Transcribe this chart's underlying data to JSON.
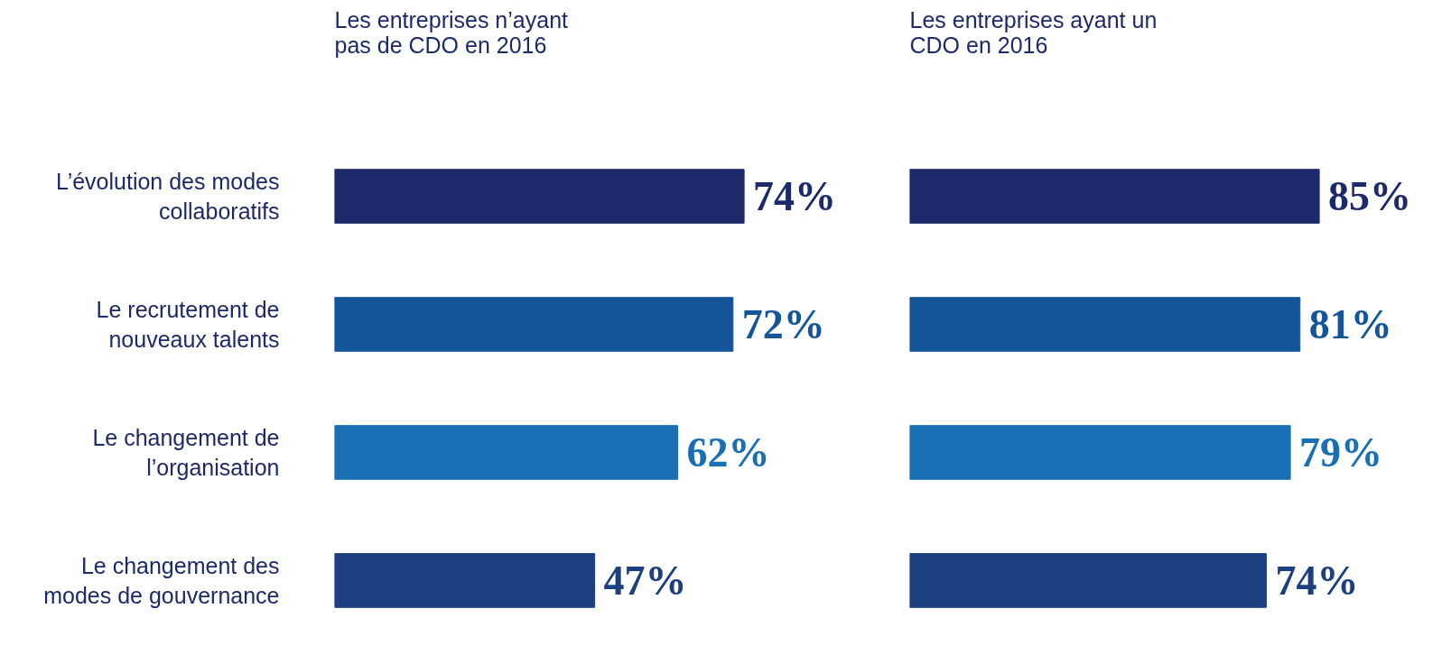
{
  "chart_data": [
    {
      "type": "bar",
      "orientation": "horizontal",
      "title": "Les entreprises n’ayant pas de CDO en 2016",
      "categories": [
        "L’évolution des modes collaboratifs",
        "Le recrutement de nouveaux talents",
        "Le changement de l’organisation",
        "Le changement des modes de gouvernance"
      ],
      "values": [
        74,
        72,
        62,
        47
      ],
      "colors": [
        "#1c2a6b",
        "#14559a",
        "#186fb4",
        "#1b3f80"
      ],
      "data_labels": true,
      "value_labels": [
        "74%",
        "72%",
        "62%",
        "47%"
      ],
      "tick_labels": "y",
      "grid": false
    },
    {
      "type": "bar",
      "orientation": "horizontal",
      "title": "Les entreprises ayant un CDO en 2016",
      "categories": [
        "L’évolution des modes collaboratifs",
        "Le recrutement de nouveaux talents",
        "Le changement de l’organisation",
        "Le changement des modes de gouvernance"
      ],
      "values": [
        85,
        81,
        79,
        74
      ],
      "colors": [
        "#1c2a6b",
        "#14559a",
        "#186fb4",
        "#1b3f80"
      ],
      "data_labels": true,
      "value_labels": [
        "85%",
        "81%",
        "79%",
        "74%"
      ],
      "tick_labels": false,
      "grid": false
    }
  ]
}
